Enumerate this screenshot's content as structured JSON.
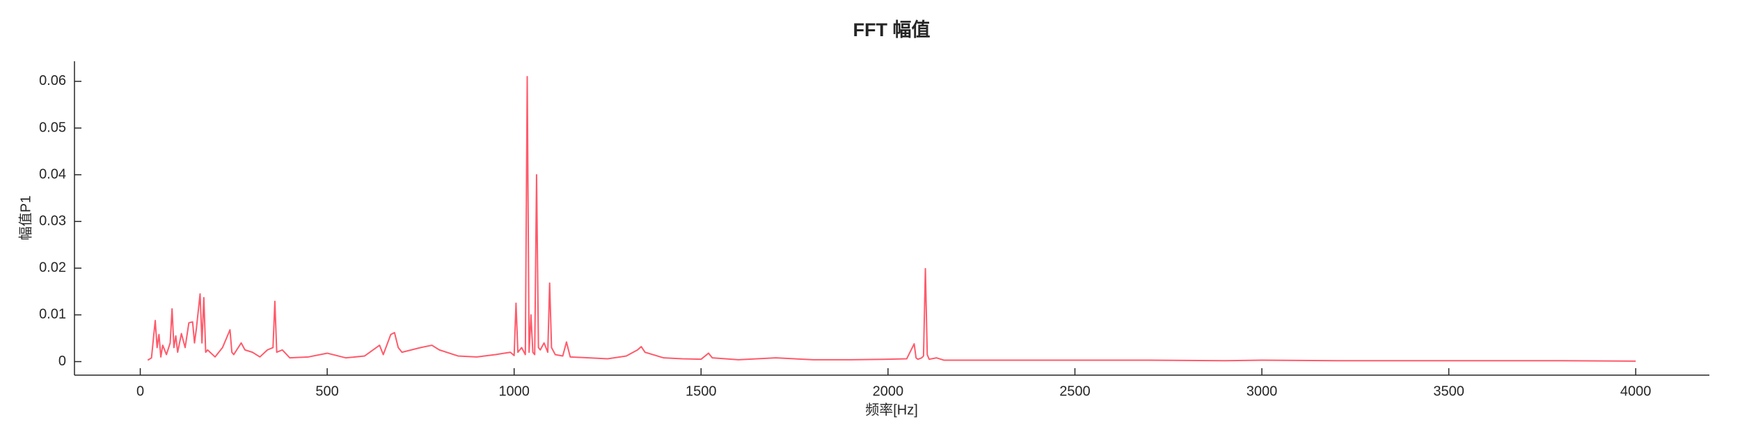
{
  "chart_data": {
    "type": "line",
    "title": "FFT 幅值",
    "x_label": "频率[Hz]",
    "y_label": "幅值P1",
    "x": [
      20,
      30,
      40,
      45,
      50,
      55,
      60,
      70,
      80,
      85,
      90,
      95,
      100,
      110,
      120,
      130,
      140,
      145,
      150,
      160,
      165,
      170,
      175,
      180,
      200,
      220,
      240,
      245,
      250,
      270,
      280,
      300,
      320,
      340,
      355,
      360,
      365,
      380,
      400,
      450,
      500,
      550,
      600,
      640,
      650,
      670,
      680,
      690,
      700,
      750,
      780,
      800,
      850,
      900,
      950,
      990,
      1000,
      1005,
      1010,
      1020,
      1030,
      1035,
      1040,
      1045,
      1050,
      1055,
      1060,
      1065,
      1070,
      1080,
      1090,
      1095,
      1100,
      1110,
      1130,
      1140,
      1150,
      1200,
      1250,
      1300,
      1330,
      1340,
      1350,
      1400,
      1450,
      1500,
      1520,
      1530,
      1600,
      1700,
      1800,
      1900,
      2000,
      2050,
      2070,
      2075,
      2080,
      2090,
      2095,
      2100,
      2105,
      2110,
      2130,
      2150,
      2200,
      2300,
      2500,
      2700,
      2900,
      3000,
      3200,
      3400,
      3600,
      3800,
      4000
    ],
    "series": [
      {
        "color": "#ff5a6a",
        "values": [
          0.0003,
          0.0008,
          0.0088,
          0.003,
          0.0058,
          0.001,
          0.0035,
          0.0015,
          0.004,
          0.0113,
          0.003,
          0.0055,
          0.002,
          0.006,
          0.003,
          0.0083,
          0.0085,
          0.004,
          0.007,
          0.0145,
          0.004,
          0.0137,
          0.002,
          0.0025,
          0.001,
          0.003,
          0.0068,
          0.002,
          0.0015,
          0.004,
          0.0025,
          0.002,
          0.001,
          0.0025,
          0.003,
          0.0129,
          0.002,
          0.0025,
          0.0008,
          0.001,
          0.0018,
          0.0008,
          0.0012,
          0.0035,
          0.0015,
          0.0058,
          0.0062,
          0.003,
          0.002,
          0.003,
          0.0035,
          0.0025,
          0.0012,
          0.001,
          0.0015,
          0.002,
          0.0013,
          0.0125,
          0.002,
          0.003,
          0.0015,
          0.061,
          0.002,
          0.01,
          0.002,
          0.0015,
          0.04,
          0.003,
          0.0025,
          0.004,
          0.002,
          0.0168,
          0.003,
          0.0015,
          0.0012,
          0.0042,
          0.001,
          0.0008,
          0.0006,
          0.0012,
          0.0025,
          0.0032,
          0.002,
          0.0008,
          0.0006,
          0.0005,
          0.0018,
          0.0008,
          0.0004,
          0.0008,
          0.0004,
          0.0004,
          0.0005,
          0.0006,
          0.0038,
          0.0008,
          0.0005,
          0.0008,
          0.0012,
          0.0199,
          0.0015,
          0.0005,
          0.0008,
          0.0003,
          0.0003,
          0.0003,
          0.0003,
          0.0003,
          0.0002,
          0.0003,
          0.0002,
          0.0002,
          0.0002,
          0.0002,
          0.0001
        ]
      }
    ],
    "xlim": [
      -176,
      4197
    ],
    "xticks": [
      0,
      500,
      1000,
      1500,
      2000,
      2500,
      3000,
      3500,
      4000
    ],
    "ylim": [
      -0.0029,
      0.0643
    ],
    "yticks": [
      0,
      0.01,
      0.02,
      0.03,
      0.04,
      0.05,
      0.06
    ],
    "grid": false
  }
}
